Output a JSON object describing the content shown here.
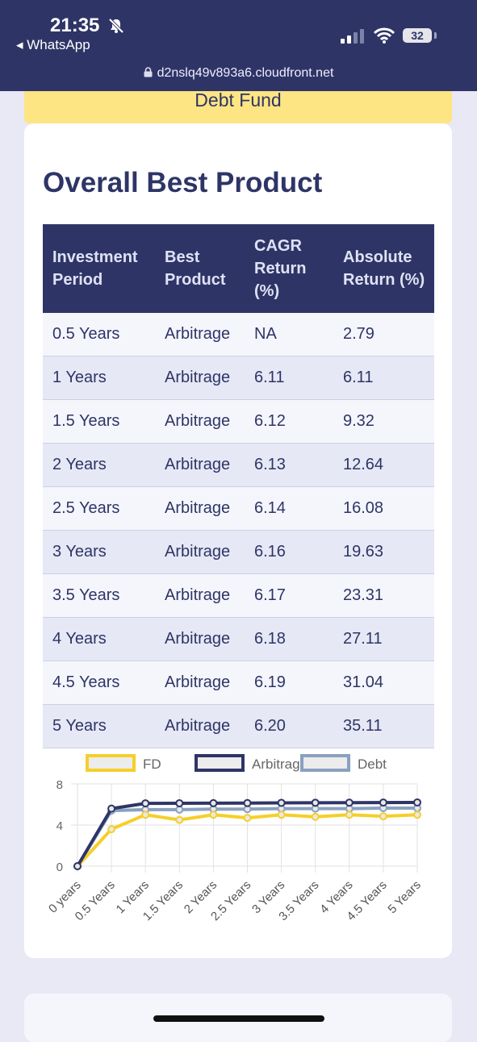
{
  "status": {
    "time": "21:35",
    "back_app": "◂ WhatsApp",
    "battery": "32",
    "url": "d2nslq49v893a6.cloudfront.net"
  },
  "prev_card": {
    "label": "Debt Fund"
  },
  "section": {
    "title": "Overall Best Product"
  },
  "table": {
    "headers": [
      "Investment Period",
      "Best Product",
      "CAGR Return (%)",
      "Absolute Return (%)"
    ],
    "rows": [
      [
        "0.5 Years",
        "Arbitrage",
        "NA",
        "2.79"
      ],
      [
        "1 Years",
        "Arbitrage",
        "6.11",
        "6.11"
      ],
      [
        "1.5 Years",
        "Arbitrage",
        "6.12",
        "9.32"
      ],
      [
        "2 Years",
        "Arbitrage",
        "6.13",
        "12.64"
      ],
      [
        "2.5 Years",
        "Arbitrage",
        "6.14",
        "16.08"
      ],
      [
        "3 Years",
        "Arbitrage",
        "6.16",
        "19.63"
      ],
      [
        "3.5 Years",
        "Arbitrage",
        "6.17",
        "23.31"
      ],
      [
        "4 Years",
        "Arbitrage",
        "6.18",
        "27.11"
      ],
      [
        "4.5 Years",
        "Arbitrage",
        "6.19",
        "31.04"
      ],
      [
        "5 Years",
        "Arbitrage",
        "6.20",
        "35.11"
      ]
    ]
  },
  "colors": {
    "navy": "#2e3566",
    "fd": "#f5cf2a",
    "arbitrage": "#2e3566",
    "debt": "#8aa0bf"
  },
  "chart_data": {
    "type": "line",
    "x": [
      "0 years",
      "0.5 Years",
      "1 Years",
      "1.5 Years",
      "2 Years",
      "2.5 Years",
      "3 Years",
      "3.5 Years",
      "4 Years",
      "4.5 Years",
      "5 Years"
    ],
    "ylim": [
      0,
      8
    ],
    "yticks": [
      0,
      4,
      8
    ],
    "grid": true,
    "legend_position": "top",
    "series": [
      {
        "name": "FD",
        "color": "#f5cf2a",
        "values": [
          0,
          3.6,
          5.0,
          4.5,
          5.0,
          4.7,
          5.0,
          4.8,
          5.0,
          4.85,
          5.0
        ]
      },
      {
        "name": "Arbitrage",
        "color": "#2e3566",
        "values": [
          0,
          5.6,
          6.11,
          6.12,
          6.13,
          6.14,
          6.16,
          6.17,
          6.18,
          6.19,
          6.2
        ]
      },
      {
        "name": "Debt",
        "color": "#8aa0bf",
        "values": [
          0,
          5.4,
          5.5,
          5.5,
          5.55,
          5.55,
          5.6,
          5.6,
          5.6,
          5.65,
          5.65
        ]
      }
    ]
  }
}
